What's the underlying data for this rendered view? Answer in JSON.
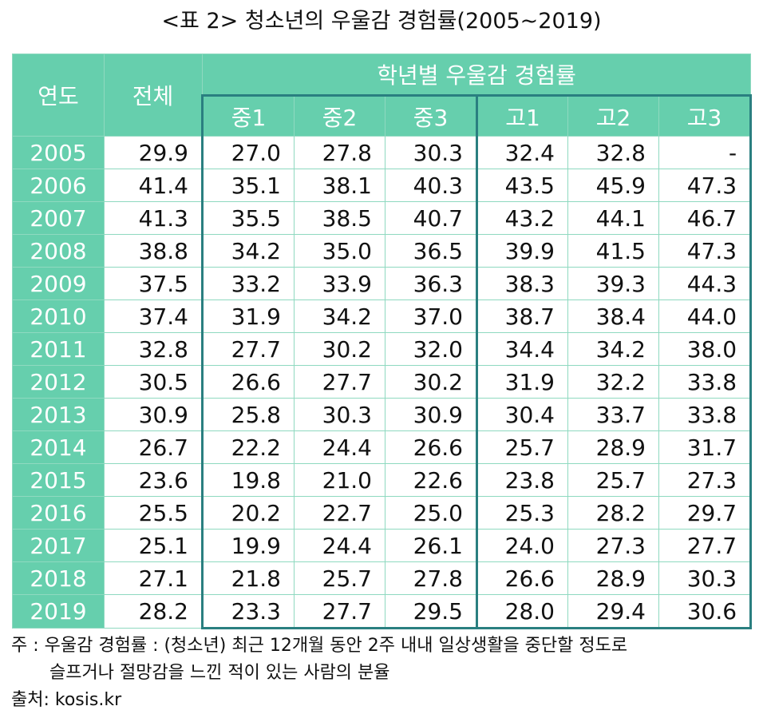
{
  "title": "<표 2> 청소년의 우울감 경험률(2005~2019)",
  "table": {
    "header": {
      "year": "연도",
      "total": "전체",
      "group": "학년별 우울감 경험률",
      "grades": [
        "중1",
        "중2",
        "중3",
        "고1",
        "고2",
        "고3"
      ]
    },
    "rows": [
      [
        "2005",
        "29.9",
        "27.0",
        "27.8",
        "30.3",
        "32.4",
        "32.8",
        "-"
      ],
      [
        "2006",
        "41.4",
        "35.1",
        "38.1",
        "40.3",
        "43.5",
        "45.9",
        "47.3"
      ],
      [
        "2007",
        "41.3",
        "35.5",
        "38.5",
        "40.7",
        "43.2",
        "44.1",
        "46.7"
      ],
      [
        "2008",
        "38.8",
        "34.2",
        "35.0",
        "36.5",
        "39.9",
        "41.5",
        "47.3"
      ],
      [
        "2009",
        "37.5",
        "33.2",
        "33.9",
        "36.3",
        "38.3",
        "39.3",
        "44.3"
      ],
      [
        "2010",
        "37.4",
        "31.9",
        "34.2",
        "37.0",
        "38.7",
        "38.4",
        "44.0"
      ],
      [
        "2011",
        "32.8",
        "27.7",
        "30.2",
        "32.0",
        "34.4",
        "34.2",
        "38.0"
      ],
      [
        "2012",
        "30.5",
        "26.6",
        "27.7",
        "30.2",
        "31.9",
        "32.2",
        "33.8"
      ],
      [
        "2013",
        "30.9",
        "25.8",
        "30.3",
        "30.9",
        "30.4",
        "33.7",
        "33.8"
      ],
      [
        "2014",
        "26.7",
        "22.2",
        "24.4",
        "26.6",
        "25.7",
        "28.9",
        "31.7"
      ],
      [
        "2015",
        "23.6",
        "19.8",
        "21.0",
        "22.6",
        "23.8",
        "25.7",
        "27.3"
      ],
      [
        "2016",
        "25.5",
        "20.2",
        "22.7",
        "25.0",
        "25.3",
        "28.2",
        "29.7"
      ],
      [
        "2017",
        "25.1",
        "19.9",
        "24.4",
        "26.1",
        "24.0",
        "27.3",
        "27.7"
      ],
      [
        "2018",
        "27.1",
        "21.8",
        "25.7",
        "27.8",
        "26.6",
        "28.9",
        "30.3"
      ],
      [
        "2019",
        "28.2",
        "23.3",
        "27.7",
        "29.5",
        "28.0",
        "29.4",
        "30.6"
      ]
    ]
  },
  "notes": {
    "lines": [
      "주 : 우울감 경험률 : (청소년) 최근 12개월 동안 2주 내내 일상생활을 중단할 정도로",
      "슬프거나 절망감을 느낀 적이 있는 사람의 분율"
    ],
    "source": "출처: kosis.kr"
  }
}
